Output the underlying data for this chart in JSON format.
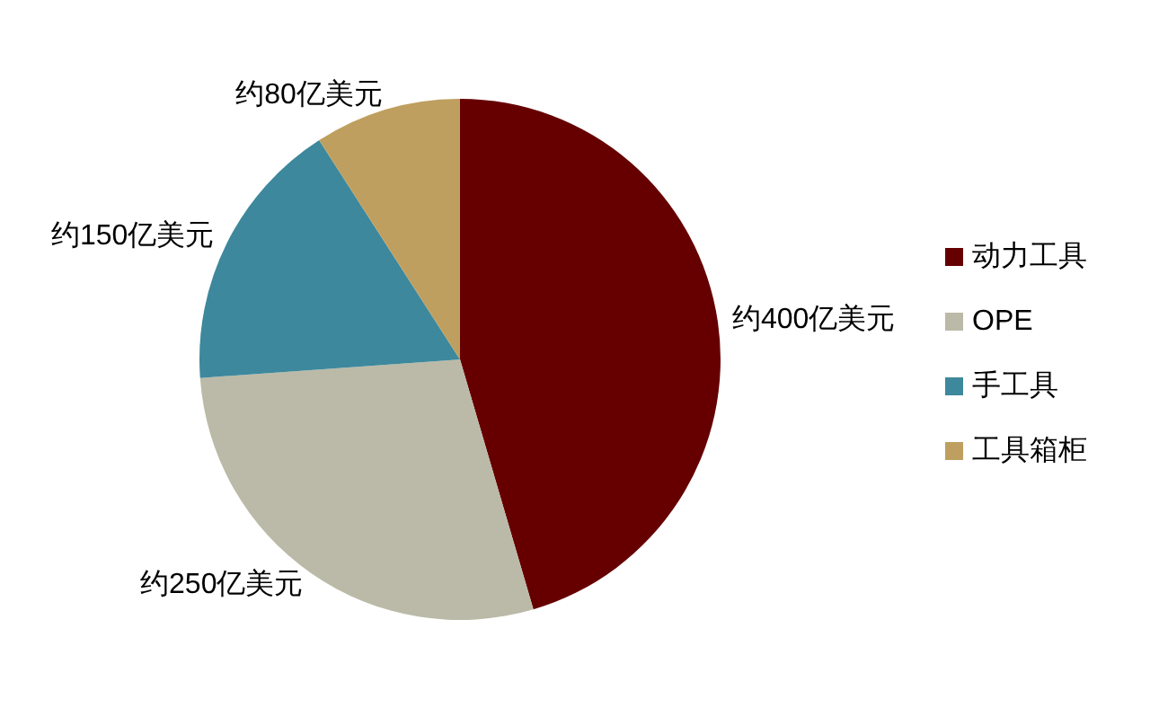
{
  "chart_data": {
    "type": "pie",
    "categories": [
      "动力工具",
      "OPE",
      "手工具",
      "工具箱柜"
    ],
    "values": [
      400,
      250,
      150,
      80
    ],
    "colors": [
      "#660000",
      "#bbbaa8",
      "#3d889c",
      "#bf9f5f"
    ],
    "value_labels": [
      "约400亿美元",
      "约250亿美元",
      "约150亿美元",
      "约80亿美元"
    ],
    "legend": "right"
  }
}
